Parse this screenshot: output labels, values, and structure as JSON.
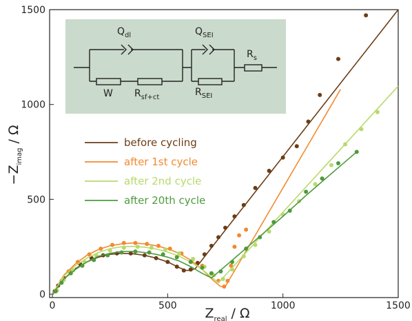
{
  "chart_data": {
    "type": "scatter",
    "xlabel": {
      "symbol": "Z",
      "subscript": "real",
      "unit": " / Ω"
    },
    "ylabel": {
      "symbol": "−Z",
      "subscript": "imag",
      "unit": " / Ω"
    },
    "xlim": [
      -12,
      1500
    ],
    "ylim": [
      -18,
      1500
    ],
    "xticks": [
      0,
      500,
      1000,
      1500
    ],
    "yticks": [
      0,
      500,
      1000,
      1500
    ],
    "legend": "left",
    "series": [
      {
        "name": "before cycling",
        "color": "#6b3d16",
        "x": [
          10,
          25,
          50,
          80,
          120,
          170,
          220,
          280,
          340,
          400,
          450,
          500,
          540,
          570,
          600,
          630,
          660,
          690,
          720,
          750,
          790,
          830,
          880,
          940,
          1000,
          1060,
          1110,
          1160,
          1240,
          1360
        ],
        "values": [
          15,
          45,
          85,
          125,
          160,
          190,
          205,
          215,
          215,
          205,
          190,
          170,
          145,
          125,
          130,
          165,
          210,
          255,
          300,
          350,
          410,
          470,
          560,
          650,
          720,
          780,
          910,
          1050,
          1240,
          1470
        ],
        "fit_x": [
          0,
          50,
          100,
          150,
          200,
          250,
          300,
          350,
          400,
          450,
          500,
          550,
          580,
          600,
          620,
          700,
          800,
          1000,
          1200,
          1400,
          1500
        ],
        "fit_values": [
          0,
          80,
          135,
          170,
          195,
          210,
          215,
          213,
          205,
          190,
          170,
          140,
          125,
          125,
          135,
          260,
          415,
          725,
          1035,
          1345,
          1500
        ]
      },
      {
        "name": "after 1st cycle",
        "color": "#f28a2e",
        "x": [
          15,
          40,
          70,
          110,
          160,
          210,
          260,
          310,
          360,
          410,
          460,
          510,
          560,
          610,
          650,
          690,
          720,
          745,
          760,
          775,
          790,
          810,
          840
        ],
        "values": [
          20,
          70,
          120,
          170,
          210,
          240,
          260,
          270,
          270,
          265,
          255,
          240,
          215,
          185,
          150,
          110,
          70,
          40,
          70,
          150,
          250,
          310,
          340
        ],
        "fit_x": [
          0,
          50,
          100,
          150,
          200,
          250,
          300,
          350,
          400,
          450,
          500,
          550,
          600,
          650,
          700,
          730,
          750,
          800,
          900,
          1000,
          1100,
          1200,
          1250
        ],
        "fit_values": [
          0,
          100,
          160,
          205,
          235,
          255,
          265,
          270,
          265,
          255,
          240,
          215,
          180,
          130,
          70,
          40,
          40,
          144,
          352,
          560,
          768,
          976,
          1080
        ]
      },
      {
        "name": "after 2nd cycle",
        "color": "#b7da6c",
        "x": [
          20,
          50,
          90,
          140,
          190,
          250,
          310,
          370,
          430,
          490,
          550,
          610,
          660,
          700,
          740,
          780,
          830,
          880,
          940,
          1000,
          1070,
          1140,
          1210,
          1270,
          1340,
          1410
        ],
        "values": [
          20,
          75,
          125,
          170,
          205,
          230,
          245,
          250,
          245,
          235,
          215,
          185,
          145,
          100,
          80,
          130,
          200,
          260,
          330,
          420,
          490,
          580,
          680,
          790,
          870,
          960
        ],
        "fit_x": [
          0,
          50,
          100,
          150,
          200,
          250,
          300,
          350,
          400,
          450,
          500,
          550,
          600,
          650,
          700,
          720,
          800,
          900,
          1000,
          1100,
          1200,
          1300,
          1400,
          1500
        ],
        "fit_values": [
          0,
          95,
          150,
          190,
          220,
          240,
          250,
          252,
          248,
          238,
          222,
          200,
          170,
          130,
          80,
          60,
          166,
          299,
          432,
          565,
          698,
          831,
          964,
          1097
        ]
      },
      {
        "name": "after 20th cycle",
        "color": "#4f9a3e",
        "x": [
          15,
          40,
          80,
          130,
          180,
          240,
          300,
          360,
          420,
          480,
          540,
          600,
          650,
          690,
          730,
          780,
          840,
          900,
          960,
          1030,
          1100,
          1170,
          1240,
          1320
        ],
        "values": [
          15,
          60,
          110,
          150,
          180,
          205,
          220,
          225,
          220,
          210,
          195,
          170,
          140,
          110,
          120,
          170,
          240,
          300,
          380,
          440,
          540,
          610,
          690,
          750
        ],
        "fit_x": [
          0,
          50,
          100,
          150,
          200,
          250,
          300,
          350,
          400,
          450,
          500,
          550,
          600,
          650,
          690,
          800,
          900,
          1000,
          1100,
          1200,
          1325
        ],
        "fit_values": [
          0,
          80,
          130,
          170,
          200,
          215,
          225,
          225,
          220,
          210,
          195,
          175,
          145,
          110,
          85,
          200,
          305,
          410,
          520,
          625,
          755
        ]
      }
    ],
    "inset": {
      "labels": [
        {
          "symbol": "Q",
          "subscript": "dl"
        },
        {
          "symbol": "W",
          "subscript": ""
        },
        {
          "symbol": "R",
          "subscript": "sf+ct"
        },
        {
          "symbol": "Q",
          "subscript": "SEI"
        },
        {
          "symbol": "R",
          "subscript": "SEI"
        },
        {
          "symbol": "R",
          "subscript": "s"
        }
      ]
    }
  }
}
